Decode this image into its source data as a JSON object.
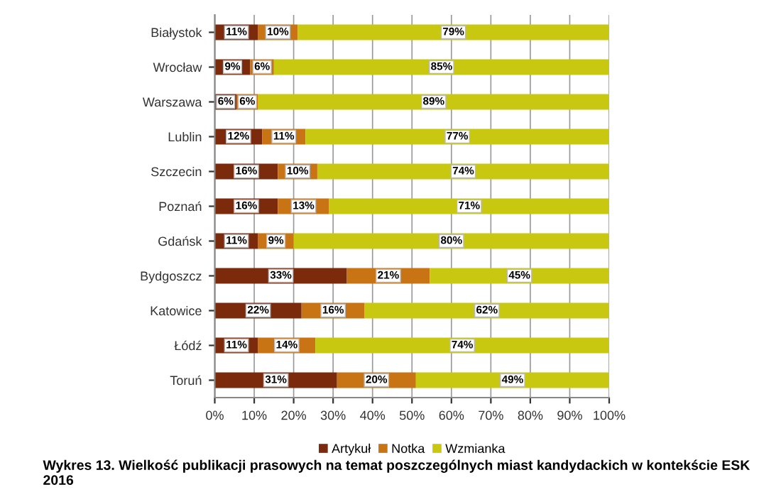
{
  "chart_data": {
    "type": "bar",
    "orientation": "horizontal",
    "stacked": true,
    "categories": [
      "Białystok",
      "Wrocław",
      "Warszawa",
      "Lublin",
      "Szczecin",
      "Poznań",
      "Gdańsk",
      "Bydgoszcz",
      "Katowice",
      "Łódź",
      "Toruń"
    ],
    "series": [
      {
        "name": "Artykuł",
        "color": "#7b2a0c",
        "values": [
          11,
          9,
          5.5,
          12,
          16,
          16,
          11,
          33.5,
          22,
          11,
          31
        ],
        "value_labels": [
          "11%",
          "9%",
          "6%",
          "12%",
          "16%",
          "16%",
          "11%",
          "33%",
          "22%",
          "11%",
          "31%"
        ]
      },
      {
        "name": "Notka",
        "color": "#c87414",
        "values": [
          10,
          6,
          5.5,
          11,
          10,
          13,
          9,
          21,
          16,
          14.5,
          20
        ],
        "value_labels": [
          "10%",
          "6%",
          "6%",
          "11%",
          "10%",
          "13%",
          "9%",
          "21%",
          "16%",
          "14%",
          "20%"
        ]
      },
      {
        "name": "Wzmianka",
        "color": "#c8c810",
        "values": [
          79,
          85,
          89,
          77,
          74,
          71,
          80,
          45.5,
          62,
          74.5,
          49
        ],
        "value_labels": [
          "79%",
          "85%",
          "89%",
          "77%",
          "74%",
          "71%",
          "80%",
          "45%",
          "62%",
          "74%",
          "49%"
        ]
      }
    ],
    "xlim": [
      0,
      100
    ],
    "xticks": [
      {
        "value": 0,
        "label": "0%"
      },
      {
        "value": 10,
        "label": "10%"
      },
      {
        "value": 20,
        "label": "20%"
      },
      {
        "value": 30,
        "label": "30%"
      },
      {
        "value": 40,
        "label": "40%"
      },
      {
        "value": 50,
        "label": "50%"
      },
      {
        "value": 60,
        "label": "60%"
      },
      {
        "value": 70,
        "label": "70%"
      },
      {
        "value": 80,
        "label": "80%"
      },
      {
        "value": 90,
        "label": "90%"
      },
      {
        "value": 100,
        "label": "100%"
      }
    ],
    "grid": "x",
    "legend": "bottom",
    "annotations": [
      "Wykres 13. Wielkość publikacji prasowych na temat poszczególnych miast kandydackich w kontekście ESK 2016"
    ]
  }
}
